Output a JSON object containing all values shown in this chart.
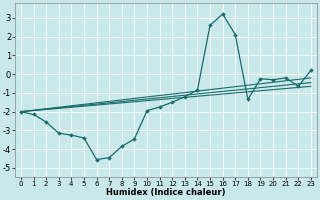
{
  "xlabel": "Humidex (Indice chaleur)",
  "xlim": [
    -0.5,
    23.5
  ],
  "ylim": [
    -5.5,
    3.8
  ],
  "yticks": [
    -5,
    -4,
    -3,
    -2,
    -1,
    0,
    1,
    2,
    3
  ],
  "xticks": [
    0,
    1,
    2,
    3,
    4,
    5,
    6,
    7,
    8,
    9,
    10,
    11,
    12,
    13,
    14,
    15,
    16,
    17,
    18,
    19,
    20,
    21,
    22,
    23
  ],
  "bg_color": "#c8e8ea",
  "grid_color": "#ffffff",
  "line_color": "#1a6b6b",
  "main_line": {
    "x": [
      0,
      1,
      2,
      3,
      4,
      5,
      6,
      7,
      8,
      9,
      10,
      11,
      12,
      13,
      14,
      15,
      16,
      17,
      18,
      19,
      20,
      21,
      22,
      23
    ],
    "y": [
      -2.0,
      -2.15,
      -2.55,
      -3.15,
      -3.25,
      -3.4,
      -4.55,
      -4.45,
      -3.85,
      -3.45,
      -1.95,
      -1.75,
      -1.5,
      -1.2,
      -0.85,
      2.6,
      3.2,
      2.1,
      -1.35,
      -0.25,
      -0.3,
      -0.2,
      -0.65,
      0.2
    ]
  },
  "trend_lines": [
    {
      "x": [
        0,
        23
      ],
      "y": [
        -2.0,
        -0.65
      ]
    },
    {
      "x": [
        0,
        23
      ],
      "y": [
        -2.0,
        -0.45
      ]
    },
    {
      "x": [
        0,
        23
      ],
      "y": [
        -2.0,
        -0.2
      ]
    }
  ],
  "figsize": [
    3.2,
    2.0
  ],
  "dpi": 100
}
